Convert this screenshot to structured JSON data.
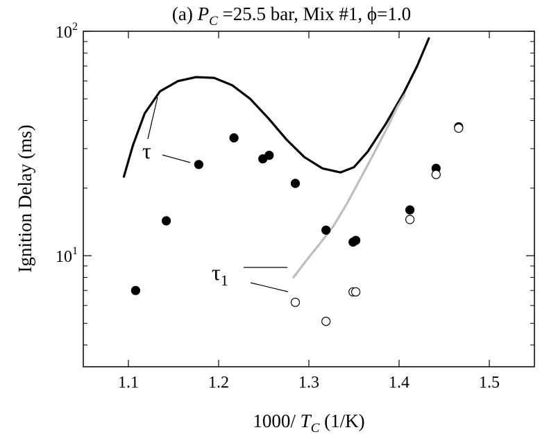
{
  "chart_data": {
    "type": "scatter",
    "title": {
      "prefix": "(a) ",
      "p_symbol": "P",
      "p_sub": "C",
      "rest": " =25.5 bar, Mix #1, ",
      "phi_symbol": "ϕ",
      "phi_value": "=1.0"
    },
    "ylabel": "Ignition Delay (ms)",
    "xlabel": {
      "prefix": "1000/ ",
      "t_symbol": "T",
      "t_sub": "C",
      "suffix": " (1/K)"
    },
    "xlim": [
      1.05,
      1.55
    ],
    "ylim": [
      3.2,
      100
    ],
    "yscale": "log",
    "x_ticks": [
      "1.1",
      "1.2",
      "1.3",
      "1.4",
      "1.5"
    ],
    "y_tick_labels": [
      {
        "value": 10,
        "base": "10",
        "exp": "1"
      },
      {
        "value": 100,
        "base": "10",
        "exp": "2"
      }
    ],
    "series": [
      {
        "style": "filled-circle",
        "points": [
          [
            1.108,
            7.0
          ],
          [
            1.142,
            14.3
          ],
          [
            1.178,
            25.5
          ],
          [
            1.217,
            33.5
          ],
          [
            1.249,
            27.0
          ],
          [
            1.256,
            28.0
          ],
          [
            1.285,
            21.0
          ],
          [
            1.319,
            13.0
          ],
          [
            1.349,
            11.5
          ],
          [
            1.352,
            11.7
          ],
          [
            1.412,
            16.0
          ],
          [
            1.441,
            24.5
          ],
          [
            1.466,
            37.5
          ]
        ]
      },
      {
        "style": "open-circle",
        "points": [
          [
            1.285,
            6.2
          ],
          [
            1.319,
            5.1
          ],
          [
            1.349,
            6.9
          ],
          [
            1.352,
            6.9
          ],
          [
            1.412,
            14.5
          ],
          [
            1.441,
            23.0
          ],
          [
            1.466,
            37.0
          ]
        ]
      },
      {
        "style": "line-black",
        "points": [
          [
            1.095,
            22.5
          ],
          [
            1.105,
            31.0
          ],
          [
            1.118,
            43.0
          ],
          [
            1.135,
            54.0
          ],
          [
            1.155,
            60.0
          ],
          [
            1.175,
            62.5
          ],
          [
            1.195,
            62.0
          ],
          [
            1.215,
            57.5
          ],
          [
            1.235,
            50.0
          ],
          [
            1.255,
            41.0
          ],
          [
            1.275,
            33.0
          ],
          [
            1.295,
            27.5
          ],
          [
            1.315,
            24.5
          ],
          [
            1.335,
            23.5
          ],
          [
            1.35,
            24.8
          ],
          [
            1.365,
            29.0
          ],
          [
            1.385,
            38.5
          ],
          [
            1.405,
            53.0
          ],
          [
            1.42,
            70.0
          ],
          [
            1.433,
            93.0
          ]
        ]
      },
      {
        "style": "line-gray",
        "points": [
          [
            1.283,
            8.0
          ],
          [
            1.297,
            9.5
          ],
          [
            1.312,
            11.3
          ],
          [
            1.327,
            13.5
          ],
          [
            1.342,
            17.0
          ],
          [
            1.357,
            22.0
          ],
          [
            1.372,
            28.5
          ],
          [
            1.388,
            38.0
          ],
          [
            1.398,
            46.0
          ],
          [
            1.406,
            52.0
          ]
        ]
      }
    ],
    "annotations": {
      "tau": {
        "text": "τ"
      },
      "tau1": {
        "text": "τ",
        "sub": "1"
      }
    }
  }
}
